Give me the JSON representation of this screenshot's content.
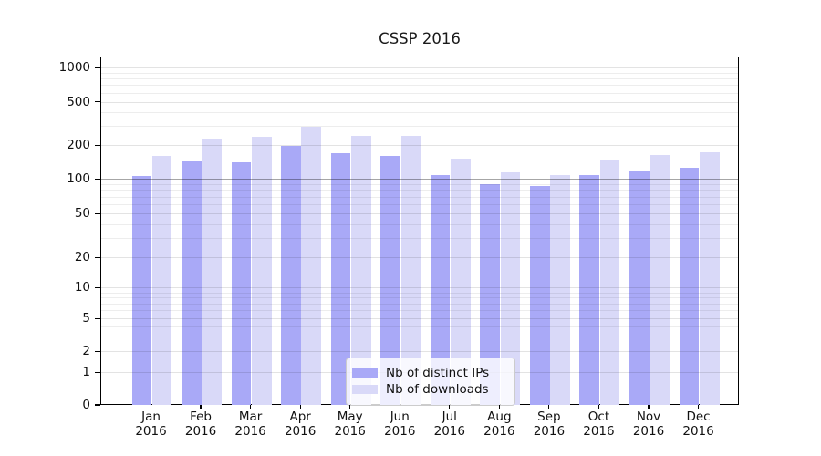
{
  "chart_data": {
    "type": "bar",
    "title": "CSSP 2016",
    "xlabel": "",
    "ylabel": "",
    "y_scale": "symlog",
    "ylim": [
      0,
      1000
    ],
    "grid": true,
    "legend_position": "lower center",
    "y_ticks": [
      1000,
      500,
      200,
      100,
      50,
      20,
      10,
      5,
      2,
      1,
      0
    ],
    "categories": [
      "Jan",
      "Feb",
      "Mar",
      "Apr",
      "May",
      "Jun",
      "Jul",
      "Aug",
      "Sep",
      "Oct",
      "Nov",
      "Dec"
    ],
    "year_label": "2016",
    "series": [
      {
        "name": "Nb of distinct IPs",
        "color": "#a9a9f7",
        "values": [
          106,
          145,
          140,
          198,
          171,
          160,
          109,
          90,
          86,
          109,
          119,
          126
        ]
      },
      {
        "name": "Nb of downloads",
        "color": "#d9d9f8",
        "values": [
          160,
          230,
          240,
          295,
          246,
          242,
          151,
          114,
          108,
          149,
          165,
          172
        ]
      }
    ]
  },
  "colors": {
    "background": "#ffffff",
    "spine": "#000000",
    "tick_label": "#111111",
    "grid_minor": "rgba(0,0,0,0.07)",
    "grid_major": "rgba(0,0,0,0.11)",
    "grid_hundred": "rgba(0,0,0,0.35)",
    "legend_border": "#cccccc",
    "legend_background": "rgba(255,255,255,0.8)"
  }
}
